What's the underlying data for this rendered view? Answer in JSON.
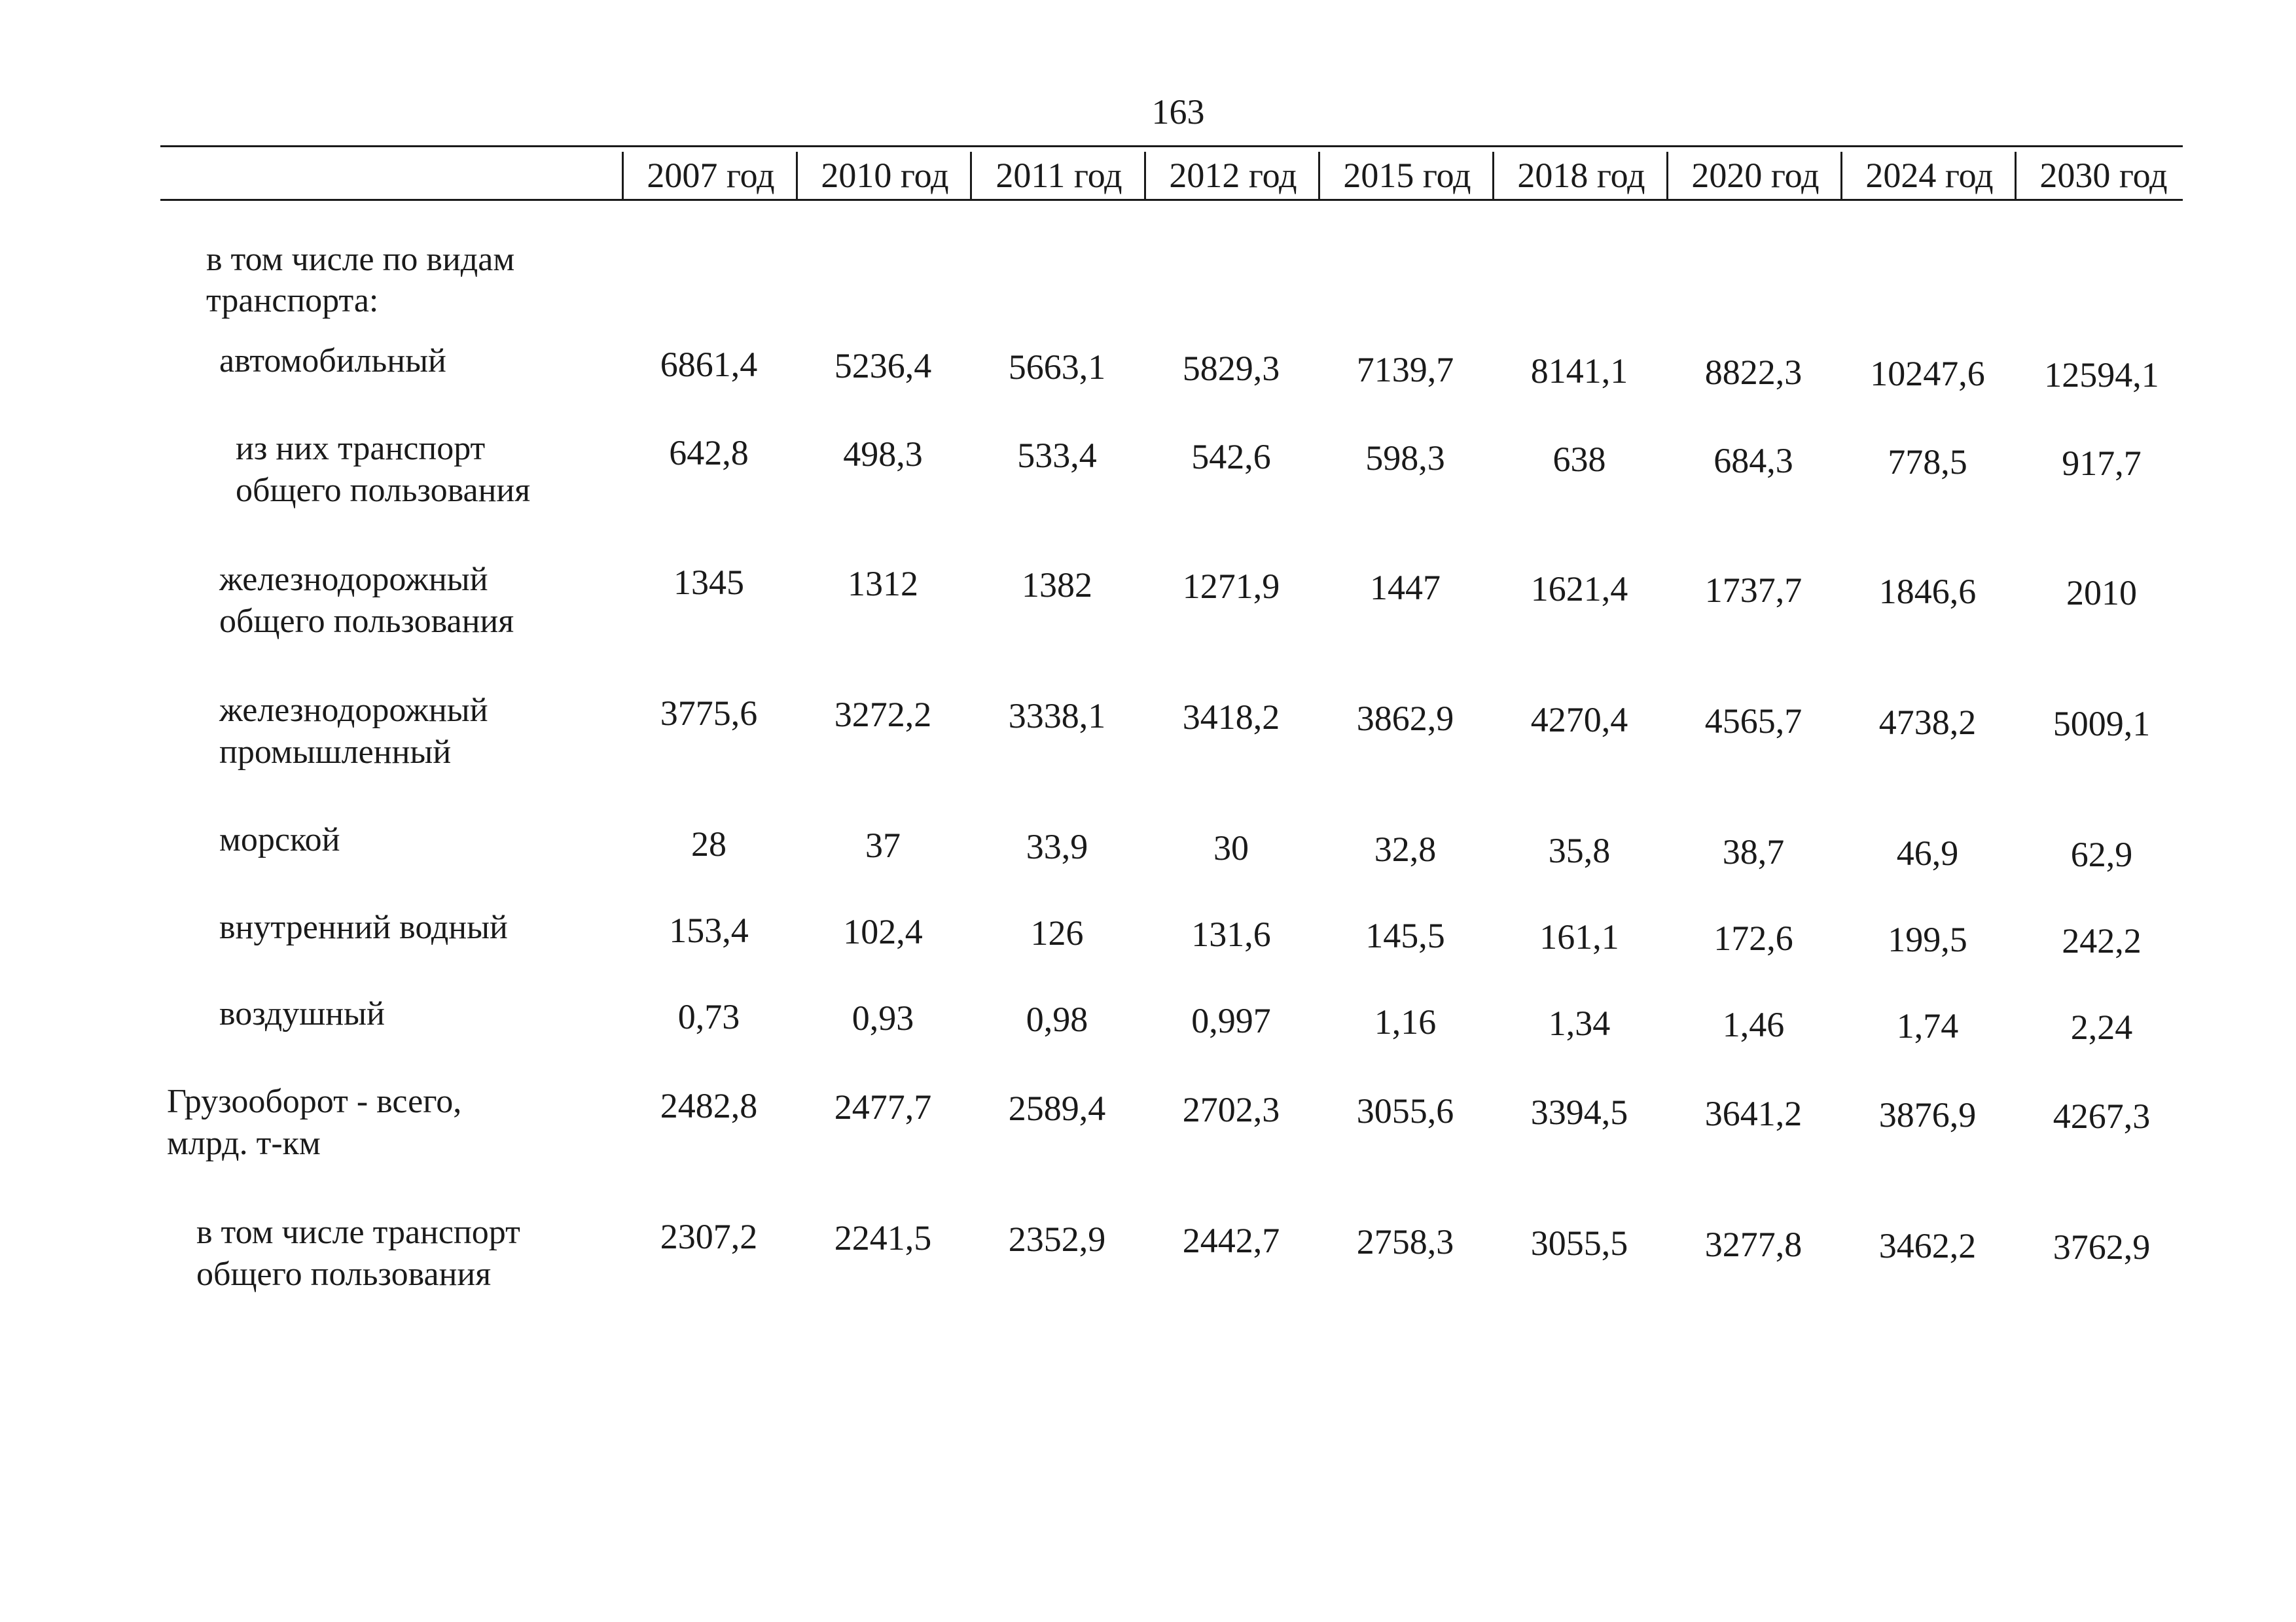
{
  "page_number": "163",
  "years": [
    "2007 год",
    "2010 год",
    "2011 год",
    "2012 год",
    "2015 год",
    "2018 год",
    "2020 год",
    "2024 год",
    "2030 год"
  ],
  "section_heading": [
    "в том числе по видам",
    "транспорта:"
  ],
  "rows": [
    {
      "label": [
        "автомобильный"
      ],
      "values": [
        "6861,4",
        "5236,4",
        "5663,1",
        "5829,3",
        "7139,7",
        "8141,1",
        "8822,3",
        "10247,6",
        "12594,1"
      ]
    },
    {
      "label": [
        "из них транспорт",
        "общего пользования"
      ],
      "values": [
        "642,8",
        "498,3",
        "533,4",
        "542,6",
        "598,3",
        "638",
        "684,3",
        "778,5",
        "917,7"
      ]
    },
    {
      "label": [
        "железнодорожный",
        "общего пользования"
      ],
      "values": [
        "1345",
        "1312",
        "1382",
        "1271,9",
        "1447",
        "1621,4",
        "1737,7",
        "1846,6",
        "2010"
      ]
    },
    {
      "label": [
        "железнодорожный",
        "промышленный"
      ],
      "values": [
        "3775,6",
        "3272,2",
        "3338,1",
        "3418,2",
        "3862,9",
        "4270,4",
        "4565,7",
        "4738,2",
        "5009,1"
      ]
    },
    {
      "label": [
        "морской"
      ],
      "values": [
        "28",
        "37",
        "33,9",
        "30",
        "32,8",
        "35,8",
        "38,7",
        "46,9",
        "62,9"
      ]
    },
    {
      "label": [
        "внутренний водный"
      ],
      "values": [
        "153,4",
        "102,4",
        "126",
        "131,6",
        "145,5",
        "161,1",
        "172,6",
        "199,5",
        "242,2"
      ]
    },
    {
      "label": [
        "воздушный"
      ],
      "values": [
        "0,73",
        "0,93",
        "0,98",
        "0,997",
        "1,16",
        "1,34",
        "1,46",
        "1,74",
        "2,24"
      ]
    },
    {
      "label": [
        "Грузооборот - всего,",
        "млрд. т-км"
      ],
      "values": [
        "2482,8",
        "2477,7",
        "2589,4",
        "2702,3",
        "3055,6",
        "3394,5",
        "3641,2",
        "3876,9",
        "4267,3"
      ]
    },
    {
      "label": [
        "в том числе транспорт",
        "общего пользования"
      ],
      "values": [
        "2307,2",
        "2241,5",
        "2352,9",
        "2442,7",
        "2758,3",
        "3055,5",
        "3277,8",
        "3462,2",
        "3762,9"
      ]
    }
  ]
}
